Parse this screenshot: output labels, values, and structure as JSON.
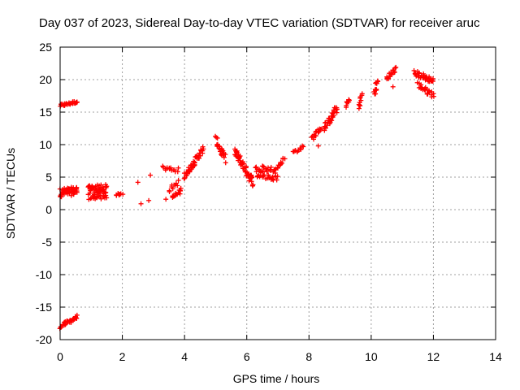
{
  "chart_data": {
    "type": "scatter",
    "title": "Day 037 of 2023, Sidereal Day-to-day VTEC variation (SDTVAR) for receiver aruc",
    "xlabel": "GPS time / hours",
    "ylabel": "SDTVAR / TECUs",
    "xlim": [
      0,
      14
    ],
    "ylim": [
      -20,
      25
    ],
    "xticks": [
      "0",
      "2",
      "4",
      "6",
      "8",
      "10",
      "12",
      "14"
    ],
    "yticks": [
      "25",
      "20",
      "15",
      "10",
      "5",
      "0",
      "-5",
      "-10",
      "-15",
      "-20"
    ],
    "grid": true,
    "marker": "plus",
    "color": "#ff0000",
    "series": [
      {
        "name": "SDTVAR",
        "clusters": [
          {
            "x0": 0.0,
            "x1": 0.55,
            "y0": 16.0,
            "y1": 16.6,
            "spread": 0.4,
            "n": 28
          },
          {
            "x0": 0.0,
            "x1": 0.55,
            "y0": 2.6,
            "y1": 2.9,
            "spread": 1.3,
            "n": 50
          },
          {
            "x0": 0.0,
            "x1": 0.55,
            "y0": -18.0,
            "y1": -16.5,
            "spread": 0.6,
            "n": 30
          },
          {
            "x0": 0.9,
            "x1": 1.5,
            "y0": 2.6,
            "y1": 2.8,
            "spread": 2.2,
            "n": 70
          },
          {
            "x0": 1.8,
            "x1": 2.0,
            "y0": 2.4,
            "y1": 2.6,
            "spread": 0.6,
            "n": 8
          },
          {
            "x0": 3.3,
            "x1": 3.8,
            "y0": 6.4,
            "y1": 6.1,
            "spread": 0.7,
            "n": 14
          },
          {
            "x0": 3.5,
            "x1": 3.8,
            "y0": 3.0,
            "y1": 4.2,
            "spread": 0.8,
            "n": 10
          },
          {
            "x0": 3.6,
            "x1": 3.9,
            "y0": 1.8,
            "y1": 3.0,
            "spread": 0.8,
            "n": 14
          },
          {
            "x0": 4.0,
            "x1": 4.6,
            "y0": 5.2,
            "y1": 9.3,
            "spread": 1.0,
            "n": 50
          },
          {
            "x0": 5.0,
            "x1": 5.3,
            "y0": 10.8,
            "y1": 7.8,
            "spread": 1.2,
            "n": 24
          },
          {
            "x0": 5.6,
            "x1": 6.2,
            "y0": 9.0,
            "y1": 4.2,
            "spread": 1.4,
            "n": 55
          },
          {
            "x0": 6.3,
            "x1": 7.0,
            "y0": 5.8,
            "y1": 5.6,
            "spread": 2.2,
            "n": 50
          },
          {
            "x0": 7.0,
            "x1": 7.2,
            "y0": 6.6,
            "y1": 7.9,
            "spread": 0.7,
            "n": 10
          },
          {
            "x0": 7.5,
            "x1": 7.8,
            "y0": 8.8,
            "y1": 9.6,
            "spread": 0.6,
            "n": 12
          },
          {
            "x0": 8.1,
            "x1": 8.4,
            "y0": 11.0,
            "y1": 12.6,
            "spread": 0.8,
            "n": 16
          },
          {
            "x0": 8.5,
            "x1": 8.9,
            "y0": 12.6,
            "y1": 15.6,
            "spread": 1.2,
            "n": 32
          },
          {
            "x0": 9.2,
            "x1": 9.3,
            "y0": 16.0,
            "y1": 16.8,
            "spread": 0.8,
            "n": 8
          },
          {
            "x0": 9.6,
            "x1": 9.7,
            "y0": 15.6,
            "y1": 17.8,
            "spread": 0.8,
            "n": 10
          },
          {
            "x0": 10.1,
            "x1": 10.2,
            "y0": 17.6,
            "y1": 19.8,
            "spread": 1.5,
            "n": 14
          },
          {
            "x0": 10.5,
            "x1": 10.8,
            "y0": 20.2,
            "y1": 21.6,
            "spread": 0.8,
            "n": 18
          },
          {
            "x0": 11.4,
            "x1": 12.0,
            "y0": 21.0,
            "y1": 19.8,
            "spread": 0.9,
            "n": 36
          },
          {
            "x0": 11.5,
            "x1": 12.0,
            "y0": 19.2,
            "y1": 17.6,
            "spread": 0.9,
            "n": 26
          }
        ],
        "points": [
          [
            2.5,
            4.2
          ],
          [
            2.6,
            0.9
          ],
          [
            2.85,
            1.4
          ],
          [
            2.9,
            5.3
          ],
          [
            3.4,
            1.6
          ],
          [
            8.3,
            9.8
          ],
          [
            10.7,
            18.9
          ]
        ]
      }
    ]
  }
}
